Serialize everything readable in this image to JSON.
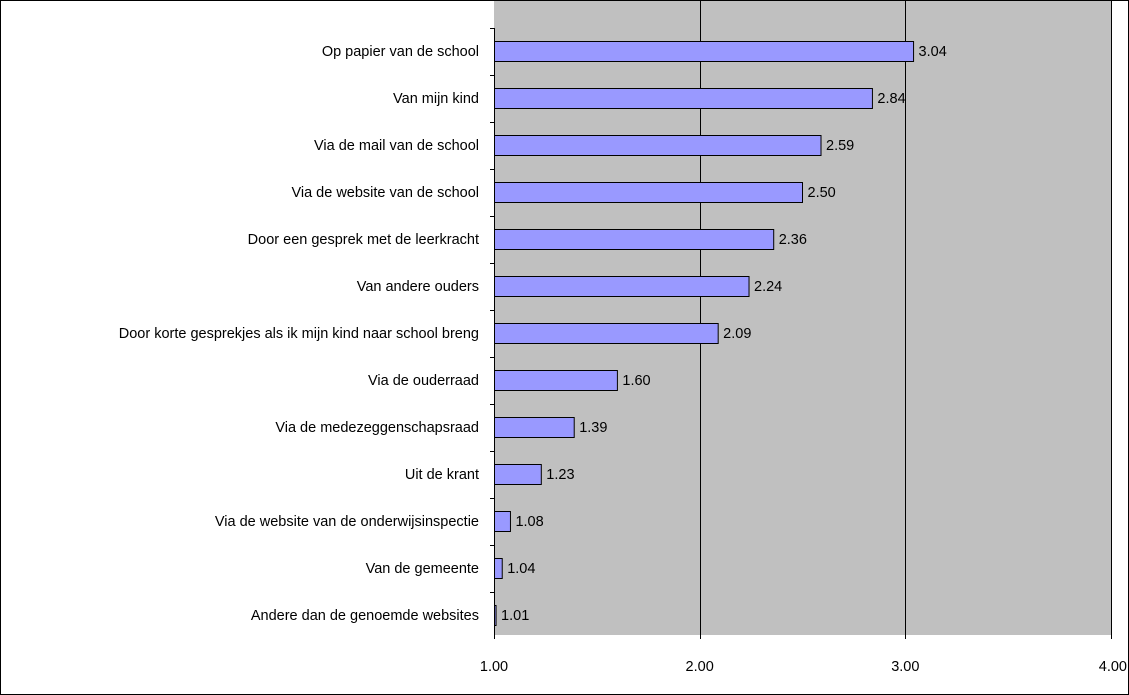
{
  "chart_data": {
    "type": "bar",
    "orientation": "horizontal",
    "title": "",
    "xlabel": "",
    "ylabel": "",
    "categories": [
      "Op papier van de school",
      "Van mijn kind",
      "Via de mail van de school",
      "Via de website van de school",
      "Door een gesprek met de leerkracht",
      "Van andere ouders",
      "Door korte gesprekjes als ik mijn kind naar school breng",
      "Via de ouderraad",
      "Via de medezeggenschapsraad",
      "Uit de krant",
      "Via de website van de onderwijsinspectie",
      "Van de gemeente",
      "Andere dan de genoemde websites"
    ],
    "values": [
      3.04,
      2.84,
      2.59,
      2.5,
      2.36,
      2.24,
      2.09,
      1.6,
      1.39,
      1.23,
      1.08,
      1.04,
      1.01
    ],
    "value_labels": [
      "3.04",
      "2.84",
      "2.59",
      "2.50",
      "2.36",
      "2.24",
      "2.09",
      "1.60",
      "1.39",
      "1.23",
      "1.08",
      "1.04",
      "1.01"
    ],
    "xlim": [
      1.0,
      4.0
    ],
    "x_ticks": [
      1.0,
      2.0,
      3.0,
      4.0
    ],
    "x_tick_labels": [
      "1.00",
      "2.00",
      "3.00",
      "4.00"
    ],
    "grid": "vertical",
    "legend": "none",
    "colors": {
      "bar_fill": "#9999ff",
      "bar_stroke": "#000000",
      "plot_background": "#c0c0c0",
      "gridline": "#000000"
    }
  }
}
